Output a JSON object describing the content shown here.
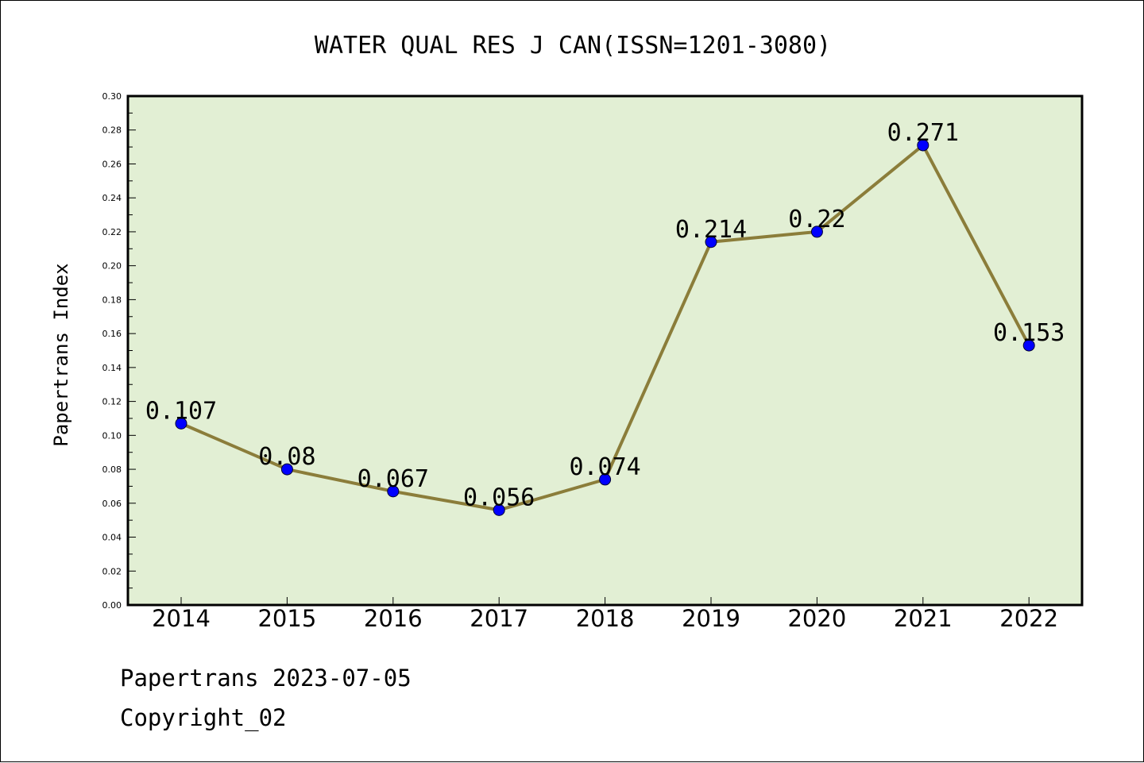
{
  "chart_data": {
    "type": "line",
    "title": "WATER QUAL RES J CAN(ISSN=1201-3080)",
    "xlabel": "",
    "ylabel": "Papertrans Index",
    "categories": [
      "2014",
      "2015",
      "2016",
      "2017",
      "2018",
      "2019",
      "2020",
      "2021",
      "2022"
    ],
    "series": [
      {
        "values": [
          0.107,
          0.08,
          0.067,
          0.056,
          0.074,
          0.214,
          0.22,
          0.271,
          0.153
        ],
        "labels": [
          "0.107",
          "0.08",
          "0.067",
          "0.056",
          "0.074",
          "0.214",
          "0.22",
          "0.271",
          "0.153"
        ],
        "line_color": "#8b7d3a",
        "marker_color": "#0000ff"
      }
    ],
    "ylim": [
      0,
      0.3
    ],
    "yticks": [
      "0.00",
      "0.02",
      "0.04",
      "0.06",
      "0.08",
      "0.10",
      "0.12",
      "0.14",
      "0.16",
      "0.18",
      "0.20",
      "0.22",
      "0.24",
      "0.26",
      "0.28",
      "0.30"
    ],
    "plot_background": "#e2efd4",
    "grid": false,
    "legend": "none"
  },
  "footer": {
    "line1": "Papertrans 2023-07-05",
    "line2": "Copyright_02"
  }
}
